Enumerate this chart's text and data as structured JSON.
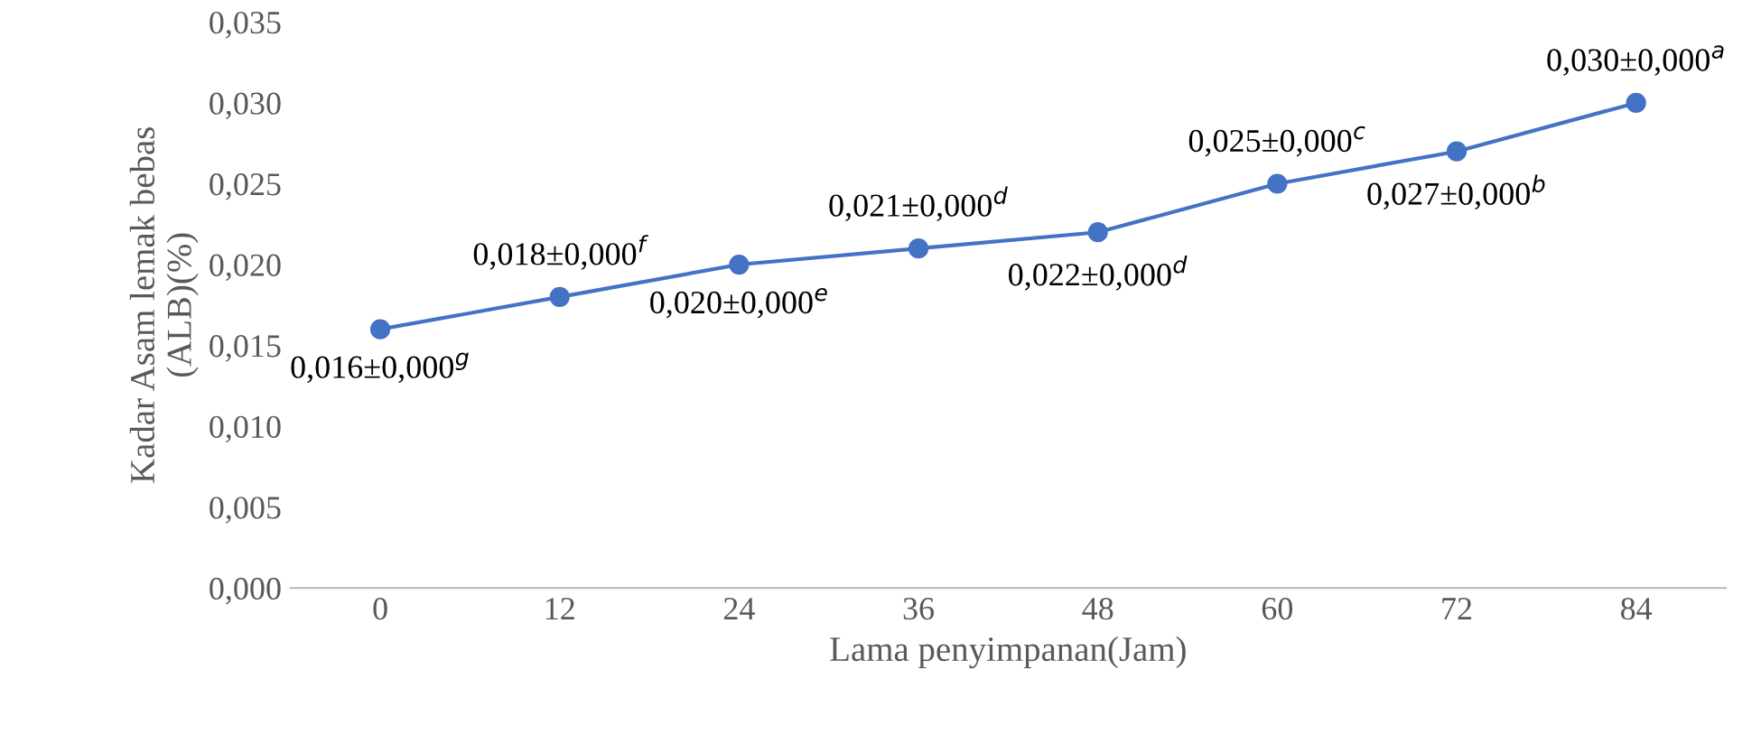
{
  "chart_data": {
    "type": "line",
    "xlabel": "Lama penyimpanan(Jam)",
    "ylabel": "Kadar Asam lemak bebas\n(ALB)(%)",
    "categories": [
      "0",
      "12",
      "24",
      "36",
      "48",
      "60",
      "72",
      "84"
    ],
    "series": [
      {
        "color": "#4472c4",
        "values": [
          0.016,
          0.018,
          0.02,
          0.021,
          0.022,
          0.025,
          0.027,
          0.03
        ],
        "value_labels": [
          "0,016±0,000$^{g}$",
          "0,018±0,000$^{f}$",
          "0,020±0,000$^{e}$",
          "0,021±0,000$^{d}$",
          "0,022±0,000$^{d}$",
          "0,025±0,000$^{c}$",
          "0,027±0,000$^{b}$",
          "0,030±0,000$^{a}$"
        ]
      }
    ],
    "ylim": [
      0,
      0.035
    ],
    "yticks": [
      {
        "value": 0,
        "label": "0,000"
      },
      {
        "value": 0.005,
        "label": "0,005"
      },
      {
        "value": 0.01,
        "label": "0,010"
      },
      {
        "value": 0.015,
        "label": "0,015"
      },
      {
        "value": 0.02,
        "label": "0,020"
      },
      {
        "value": 0.025,
        "label": "0,025"
      },
      {
        "value": 0.03,
        "label": "0,030"
      },
      {
        "value": 0.035,
        "label": "0,035"
      }
    ],
    "marker": "circle",
    "line_style": "solid",
    "grid": false,
    "legend": false
  }
}
